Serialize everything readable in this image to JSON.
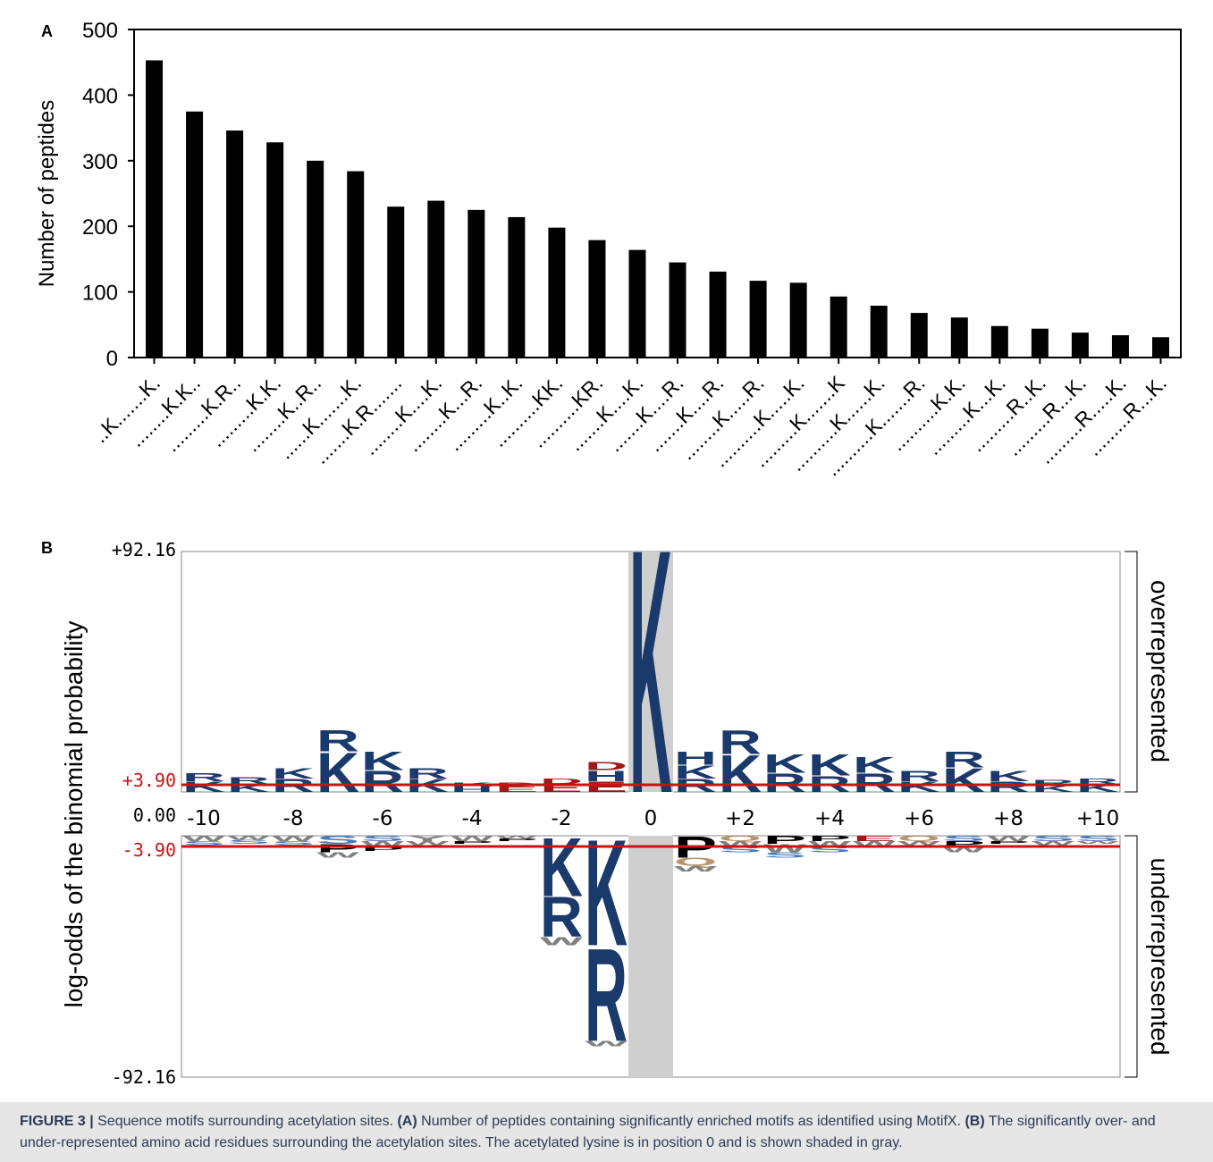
{
  "panel_a": {
    "label": "A"
  },
  "panel_b": {
    "label": "B"
  },
  "chart_data": [
    {
      "type": "bar",
      "ylabel": "Number of peptides",
      "ylim": [
        0,
        500
      ],
      "yticks": [
        0,
        100,
        200,
        300,
        400,
        500
      ],
      "categories": [
        "..K.......K.",
        "........K.K..",
        ".........K.R..",
        ".........K.K.",
        "........K..R..",
        "......K.......K.",
        ".......K.R.......",
        "........K....K.",
        "........K...R.",
        ".........K..K.",
        "..........KK.",
        "..........KR.",
        ".......K....K.",
        ".......K....R.",
        ".......K....R.",
        "........K.....R.",
        "..........K.....K.",
        ".........K.......K",
        "..........K......K.",
        "..........K.......R.",
        "..........K.K.",
        ".........K...K.",
        ".........R..K.",
        ".........R...K.",
        ".........R.....K.",
        ".........R...K."
      ],
      "values": [
        453,
        375,
        346,
        328,
        300,
        284,
        230,
        239,
        225,
        214,
        198,
        179,
        164,
        145,
        131,
        117,
        114,
        93,
        79,
        68,
        61,
        48,
        44,
        38,
        34,
        31
      ]
    },
    {
      "type": "sequence-logo",
      "ylabel": "log-odds of the binomial probability",
      "ytick_labels": [
        "+92.16",
        "+3.90",
        "0.00",
        "-3.90",
        "-92.16"
      ],
      "ylim": [
        -92.16,
        92.16
      ],
      "threshold": 3.9,
      "positions": [
        "-10",
        "-8",
        "-6",
        "-4",
        "-2",
        "0",
        "+2",
        "+4",
        "+6",
        "+8",
        "+10"
      ],
      "side_labels": [
        "overrepresented",
        "underrepresented"
      ],
      "highlight_position": 0,
      "over": [
        {
          "pos": -10,
          "letters": [
            [
              "K",
              4
            ],
            [
              "R",
              3
            ]
          ]
        },
        {
          "pos": -9,
          "letters": [
            [
              "K",
              3
            ],
            [
              "R",
              2.5
            ]
          ]
        },
        {
          "pos": -8,
          "letters": [
            [
              "R",
              5
            ],
            [
              "K",
              4
            ]
          ]
        },
        {
          "pos": -7,
          "letters": [
            [
              "K",
              15
            ],
            [
              "R",
              8
            ]
          ]
        },
        {
          "pos": -6,
          "letters": [
            [
              "R",
              8
            ],
            [
              "K",
              7
            ]
          ]
        },
        {
          "pos": -5,
          "letters": [
            [
              "K",
              5
            ],
            [
              "R",
              4
            ]
          ]
        },
        {
          "pos": -4,
          "letters": [
            [
              "H",
              2
            ],
            [
              "K",
              1.5
            ]
          ]
        },
        {
          "pos": -3,
          "letters": [
            [
              "E",
              2
            ],
            [
              "D",
              1.5
            ]
          ]
        },
        {
          "pos": -2,
          "letters": [
            [
              "E",
              3
            ],
            [
              "D",
              2
            ]
          ]
        },
        {
          "pos": -1,
          "letters": [
            [
              "E",
              4
            ],
            [
              "H",
              4
            ],
            [
              "D",
              3
            ]
          ]
        },
        {
          "pos": 0,
          "letters": [
            [
              "K",
              92.16
            ]
          ]
        },
        {
          "pos": 1,
          "letters": [
            [
              "R",
              5
            ],
            [
              "K",
              5
            ],
            [
              "H",
              5
            ]
          ]
        },
        {
          "pos": 2,
          "letters": [
            [
              "K",
              14
            ],
            [
              "R",
              9
            ]
          ]
        },
        {
          "pos": 3,
          "letters": [
            [
              "R",
              7
            ],
            [
              "K",
              7
            ]
          ]
        },
        {
          "pos": 4,
          "letters": [
            [
              "R",
              6
            ],
            [
              "K",
              8
            ]
          ]
        },
        {
          "pos": 5,
          "letters": [
            [
              "R",
              7
            ],
            [
              "K",
              6
            ]
          ]
        },
        {
          "pos": 6,
          "letters": [
            [
              "K",
              4
            ],
            [
              "R",
              4
            ]
          ]
        },
        {
          "pos": 7,
          "letters": [
            [
              "K",
              9
            ],
            [
              "R",
              6
            ]
          ]
        },
        {
          "pos": 8,
          "letters": [
            [
              "R",
              4
            ],
            [
              "K",
              4
            ]
          ]
        },
        {
          "pos": 9,
          "letters": [
            [
              "K",
              2.5
            ],
            [
              "R",
              2
            ]
          ]
        },
        {
          "pos": 10,
          "letters": [
            [
              "K",
              3
            ],
            [
              "R",
              2
            ]
          ]
        }
      ],
      "under": [
        {
          "pos": -10,
          "letters": [
            [
              "W",
              2
            ],
            [
              "S",
              1.5
            ]
          ]
        },
        {
          "pos": -9,
          "letters": [
            [
              "W",
              1.5
            ],
            [
              "S",
              1.5
            ]
          ]
        },
        {
          "pos": -8,
          "letters": [
            [
              "W",
              2
            ],
            [
              "S",
              1.5
            ]
          ]
        },
        {
          "pos": -7,
          "letters": [
            [
              "S",
              3
            ],
            [
              "P",
              3
            ],
            [
              "W",
              2
            ]
          ]
        },
        {
          "pos": -6,
          "letters": [
            [
              "S",
              2
            ],
            [
              "W",
              2
            ],
            [
              "P",
              1.5
            ]
          ]
        },
        {
          "pos": -5,
          "letters": [
            [
              "Y",
              2
            ],
            [
              "W",
              1.5
            ]
          ]
        },
        {
          "pos": -4,
          "letters": [
            [
              "W",
              2
            ],
            [
              "P",
              1
            ]
          ]
        },
        {
          "pos": -3,
          "letters": [
            [
              "W",
              1
            ],
            [
              "P",
              1
            ]
          ]
        },
        {
          "pos": -2,
          "letters": [
            [
              "K",
              22
            ],
            [
              "R",
              15
            ],
            [
              "W",
              3
            ]
          ]
        },
        {
          "pos": -1,
          "letters": [
            [
              "K",
              40
            ],
            [
              "R",
              35
            ],
            [
              "W",
              2
            ]
          ]
        },
        {
          "pos": 1,
          "letters": [
            [
              "P",
              8
            ],
            [
              "Q",
              3
            ],
            [
              "W",
              2
            ]
          ]
        },
        {
          "pos": 2,
          "letters": [
            [
              "Q",
              2
            ],
            [
              "W",
              2
            ],
            [
              "S",
              2
            ]
          ]
        },
        {
          "pos": 3,
          "letters": [
            [
              "P",
              3
            ],
            [
              "W",
              3
            ],
            [
              "S",
              2
            ]
          ]
        },
        {
          "pos": 4,
          "letters": [
            [
              "P",
              2
            ],
            [
              "W",
              2
            ],
            [
              "S",
              2
            ]
          ]
        },
        {
          "pos": 5,
          "letters": [
            [
              "E",
              2
            ],
            [
              "W",
              2
            ]
          ]
        },
        {
          "pos": 6,
          "letters": [
            [
              "Q",
              2
            ],
            [
              "W",
              1.5
            ]
          ]
        },
        {
          "pos": 7,
          "letters": [
            [
              "S",
              2
            ],
            [
              "P",
              2
            ],
            [
              "W",
              2
            ]
          ]
        },
        {
          "pos": 8,
          "letters": [
            [
              "W",
              2
            ],
            [
              "P",
              1
            ]
          ]
        },
        {
          "pos": 9,
          "letters": [
            [
              "S",
              2
            ],
            [
              "W",
              1.5
            ]
          ]
        },
        {
          "pos": 10,
          "letters": [
            [
              "S",
              2
            ],
            [
              "W",
              1
            ]
          ]
        }
      ]
    }
  ],
  "caption": {
    "figure_label": "FIGURE 3 |",
    "lead": " Sequence motifs surrounding acetylation sites. ",
    "a_label": "(A)",
    "a_text": " Number of peptides containing significantly enriched motifs as identified using MotifX. ",
    "b_label": "(B)",
    "b_text": " The significantly over- and under-represented amino acid residues surrounding the acetylation sites. The acetylated lysine is in position 0 and is shown shaded in gray."
  },
  "colors": {
    "bar": "#000000",
    "K": "#1a3a6b",
    "R": "#1a3a6b",
    "H": "#1a3a6b",
    "D": "#a01818",
    "E": "#a01818",
    "threshold_line": "#cc1111",
    "shade": "#cfcfcf",
    "W": "#808080",
    "S": "#4a7ab5",
    "P": "#000000",
    "Q": "#b8956a",
    "Y": "#808080"
  }
}
